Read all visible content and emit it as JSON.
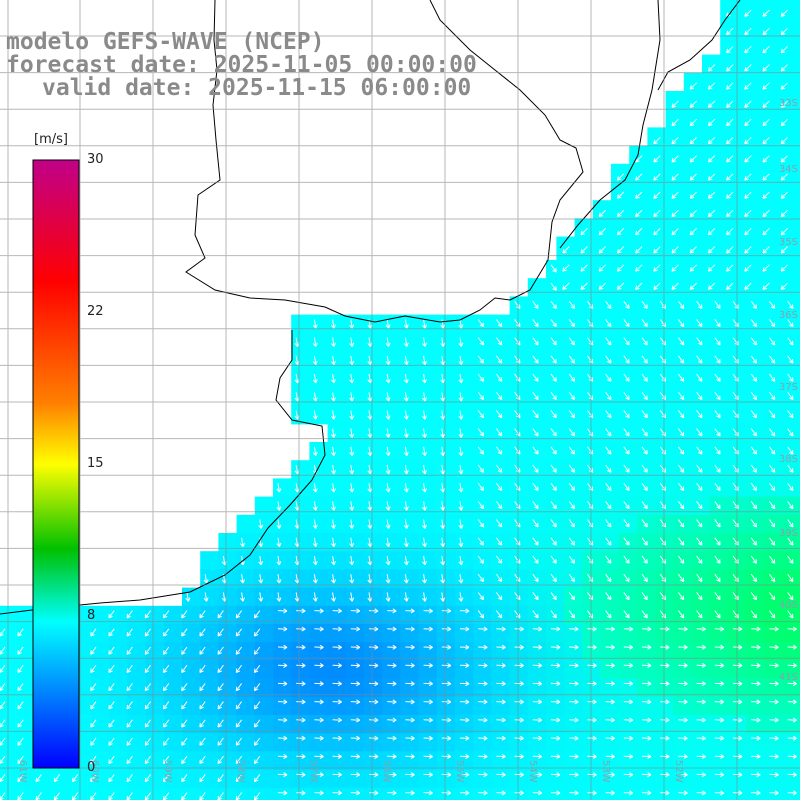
{
  "header": {
    "line1": "modelo GEFS-WAVE (NCEP)",
    "line2": "forecast date: 2025-11-05 00:00:00",
    "line3": "valid date: 2025-11-15 06:00:00"
  },
  "colorbar": {
    "unit": "[m/s]",
    "ticks": [
      "30",
      "22",
      "15",
      "8",
      "0"
    ],
    "colors": [
      "#c0008a",
      "#ff0000",
      "#ff8000",
      "#ffff00",
      "#00c000",
      "#00ffff",
      "#0000ff"
    ]
  },
  "grid": {
    "lat_labels": [
      "33S",
      "34S",
      "35S",
      "36S",
      "37S",
      "38S",
      "39S",
      "40S",
      "41S"
    ],
    "lon_labels": [
      "61W",
      "60W",
      "59W",
      "58W",
      "57W",
      "56W",
      "55W",
      "54W",
      "53W",
      "52W"
    ]
  },
  "colors": {
    "land": "#ffffff",
    "coast": "#000000",
    "gridline": "#888888",
    "header_text": "#8a8a8a"
  }
}
